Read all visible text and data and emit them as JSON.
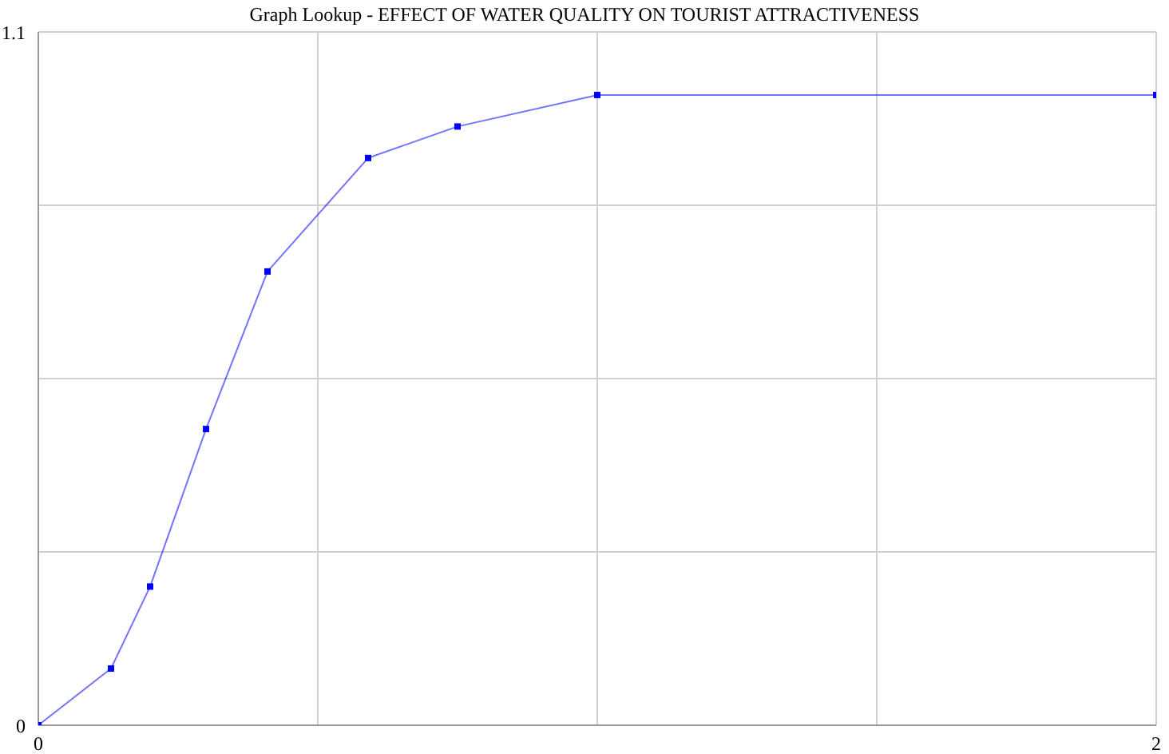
{
  "chart_data": {
    "type": "line",
    "title": "Graph Lookup - EFFECT OF WATER QUALITY ON TOURIST ATTRACTIVENESS",
    "x": [
      0,
      0.13,
      0.2,
      0.3,
      0.41,
      0.59,
      0.75,
      1,
      2
    ],
    "series": [
      {
        "color": "#0000ff",
        "values": [
          0,
          0.09,
          0.22,
          0.47,
          0.72,
          0.9,
          0.95,
          1,
          1
        ]
      }
    ],
    "xlim": [
      0,
      2
    ],
    "xticks": [
      0,
      {
        "value": 0.5,
        "label": null
      },
      {
        "value": 1,
        "label": null
      },
      {
        "value": 1.5,
        "label": null
      },
      2
    ],
    "ylim": [
      0,
      1.1
    ],
    "yticks": [
      0,
      {
        "value": 0.275,
        "label": null
      },
      {
        "value": 0.55,
        "label": null
      },
      {
        "value": 0.825,
        "label": null
      },
      1.1
    ],
    "grid": true,
    "marker": "square",
    "line_style": "solid",
    "legend": false
  }
}
